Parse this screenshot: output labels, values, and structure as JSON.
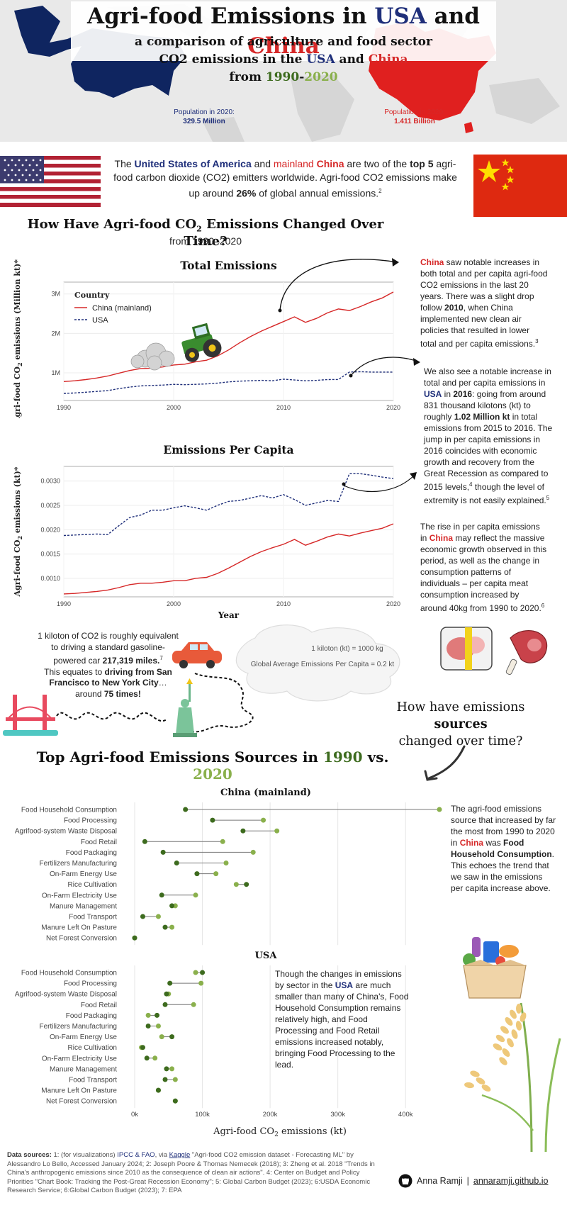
{
  "header": {
    "title_pre": "Agri-food Emissions in ",
    "title_usa": "USA",
    "title_and": " and ",
    "title_china": "China",
    "sub1": "a comparison of agriculture and food sector",
    "sub2_pre": "CO2 emissions in the ",
    "sub2_usa": "USA",
    "sub2_and": " and ",
    "sub2_china": "China",
    "sub3_pre": "from ",
    "sub3_y1": "1990",
    "sub3_dash": "-",
    "sub3_y2": "2020",
    "pop_usa_label": "Population in 2020:",
    "pop_usa_value": "329.5 Million",
    "pop_china_label": "Population in 2020:",
    "pop_china_value": "1.411 Billion"
  },
  "intro": {
    "t1": "The ",
    "usa": "United States of America",
    "t2": " and ",
    "mainland": "mainland ",
    "china": "China",
    "t3": " are two of the ",
    "top5": "top 5",
    "t4": " agri-food carbon dioxide (CO2) emitters worldwide. Agri-food CO2 emissions make up around ",
    "pct": "26%",
    "t5": " of global annual emissions.",
    "sup": "2"
  },
  "section1": {
    "title_pre": "How Have Agri-food CO",
    "title_sub": "2",
    "title_post": " Emissions Changed Over Time?",
    "subtitle": "from 1990–2020"
  },
  "colors": {
    "usa_blue": "#1f2f7a",
    "china_red": "#d62828",
    "dark_green": "#3d6b1e",
    "light_green": "#8ab04c"
  },
  "chart_data": [
    {
      "type": "line",
      "title": "Total Emissions",
      "ylabel_pre": "Agri-food CO",
      "ylabel_sub": "2",
      "ylabel_post": " emissions (Million kt)*",
      "x": [
        1990,
        1991,
        1992,
        1993,
        1994,
        1995,
        1996,
        1997,
        1998,
        1999,
        2000,
        2001,
        2002,
        2003,
        2004,
        2005,
        2006,
        2007,
        2008,
        2009,
        2010,
        2011,
        2012,
        2013,
        2014,
        2015,
        2016,
        2017,
        2018,
        2019,
        2020
      ],
      "xlim": [
        1990,
        2020
      ],
      "ylim": [
        300000,
        3300000
      ],
      "xticks": [
        1990,
        2000,
        2010,
        2020
      ],
      "yticks": [
        1000000,
        2000000,
        3000000
      ],
      "ytick_labels": [
        "1M",
        "2M",
        "3M"
      ],
      "legend_title": "Country",
      "legend_position": "top-left",
      "series": [
        {
          "name": "China (mainland)",
          "color": "#d62828",
          "style": "solid",
          "values": [
            780000,
            800000,
            830000,
            870000,
            920000,
            990000,
            1060000,
            1110000,
            1120000,
            1150000,
            1200000,
            1220000,
            1280000,
            1320000,
            1430000,
            1580000,
            1760000,
            1920000,
            2060000,
            2180000,
            2300000,
            2420000,
            2280000,
            2380000,
            2520000,
            2620000,
            2580000,
            2680000,
            2800000,
            2900000,
            3050000
          ]
        },
        {
          "name": "USA",
          "color": "#1f2f7a",
          "style": "dashed",
          "values": [
            480000,
            490000,
            510000,
            530000,
            550000,
            600000,
            640000,
            670000,
            680000,
            690000,
            710000,
            700000,
            710000,
            720000,
            740000,
            770000,
            790000,
            800000,
            810000,
            800000,
            840000,
            820000,
            800000,
            810000,
            830000,
            831000,
            1020000,
            1030000,
            1020000,
            1020000,
            1020000
          ]
        }
      ]
    },
    {
      "type": "line",
      "title": "Emissions Per Capita",
      "ylabel_pre": "Agri-food CO",
      "ylabel_sub": "2",
      "ylabel_post": " emissions (kt)*",
      "xlabel": "Year",
      "x": [
        1990,
        1991,
        1992,
        1993,
        1994,
        1995,
        1996,
        1997,
        1998,
        1999,
        2000,
        2001,
        2002,
        2003,
        2004,
        2005,
        2006,
        2007,
        2008,
        2009,
        2010,
        2011,
        2012,
        2013,
        2014,
        2015,
        2016,
        2017,
        2018,
        2019,
        2020
      ],
      "xlim": [
        1990,
        2020
      ],
      "ylim": [
        0.00062,
        0.0033
      ],
      "xticks": [
        1990,
        2000,
        2010,
        2020
      ],
      "yticks": [
        0.001,
        0.0015,
        0.002,
        0.0025,
        0.003
      ],
      "ytick_labels": [
        "0.0010",
        "0.0015",
        "0.0020",
        "0.0025",
        "0.0030"
      ],
      "series": [
        {
          "name": "China (mainland)",
          "color": "#d62828",
          "style": "solid",
          "values": [
            0.00068,
            0.00069,
            0.00071,
            0.00073,
            0.00076,
            0.00081,
            0.00087,
            0.0009,
            0.0009,
            0.00092,
            0.00095,
            0.00095,
            0.001,
            0.00102,
            0.0011,
            0.00121,
            0.00133,
            0.00145,
            0.00155,
            0.00163,
            0.0017,
            0.0018,
            0.00168,
            0.00176,
            0.00185,
            0.00191,
            0.00187,
            0.00193,
            0.00198,
            0.00203,
            0.00212
          ]
        },
        {
          "name": "USA",
          "color": "#1f2f7a",
          "style": "dashed",
          "values": [
            0.00188,
            0.00189,
            0.0019,
            0.00191,
            0.0019,
            0.00208,
            0.00225,
            0.0023,
            0.0024,
            0.0024,
            0.00245,
            0.00249,
            0.00245,
            0.0024,
            0.0025,
            0.00258,
            0.0026,
            0.00265,
            0.0027,
            0.00265,
            0.00272,
            0.00262,
            0.0025,
            0.00255,
            0.0026,
            0.00258,
            0.00315,
            0.00315,
            0.00312,
            0.00308,
            0.00305
          ]
        }
      ]
    },
    {
      "type": "dumbbell",
      "title": "China (mainland)",
      "xlim": [
        0,
        450000
      ],
      "categories": [
        "Food Household Consumption",
        "Food Processing",
        "Agrifood-system Waste Disposal",
        "Food Retail",
        "Food Packaging",
        "Fertilizers Manufacturing",
        "On-Farm Energy Use",
        "Rice Cultivation",
        "On-Farm Electricity Use",
        "Manure Management",
        "Food Transport",
        "Manure Left On Pasture",
        "Net Forest Conversion"
      ],
      "series": [
        {
          "name": "1990",
          "color": "#3d6b1e",
          "values": [
            75000,
            115000,
            160000,
            15000,
            42000,
            62000,
            92000,
            165000,
            40000,
            55000,
            12000,
            45000,
            0
          ]
        },
        {
          "name": "2020",
          "color": "#8ab04c",
          "values": [
            450000,
            190000,
            210000,
            130000,
            175000,
            135000,
            120000,
            150000,
            90000,
            60000,
            35000,
            55000,
            0
          ]
        }
      ]
    },
    {
      "type": "dumbbell",
      "title": "USA",
      "xlabel_pre": "Agri-food CO",
      "xlabel_sub": "2",
      "xlabel_post": " emissions (kt)",
      "xlim": [
        0,
        450000
      ],
      "xticks": [
        0,
        100000,
        200000,
        300000,
        400000
      ],
      "xtick_labels": [
        "0k",
        "100k",
        "200k",
        "300k",
        "400k"
      ],
      "categories": [
        "Food Household Consumption",
        "Food Processing",
        "Agrifood-system Waste Disposal",
        "Food Retail",
        "Food Packaging",
        "Fertilizers Manufacturing",
        "On-Farm Energy Use",
        "Rice Cultivation",
        "On-Farm Electricity Use",
        "Manure Management",
        "Food Transport",
        "Manure Left On Pasture",
        "Net Forest Conversion"
      ],
      "series": [
        {
          "name": "1990",
          "color": "#3d6b1e",
          "values": [
            100000,
            52000,
            47000,
            45000,
            33000,
            20000,
            55000,
            12000,
            18000,
            47000,
            45000,
            35000,
            60000
          ]
        },
        {
          "name": "2020",
          "color": "#8ab04c",
          "values": [
            90000,
            98000,
            50000,
            87000,
            20000,
            35000,
            40000,
            10000,
            30000,
            55000,
            60000,
            35000,
            60000
          ]
        }
      ]
    }
  ],
  "notes": {
    "china_p1": "China",
    "china_p2": " saw notable increases in both total and per capita agri-food CO2 emissions in the last 20 years. There was a slight drop follow ",
    "china_2010": "2010",
    "china_p3": ", when China implemented new clean air policies that resulted in lower total and per capita emissions.",
    "china_sup": "3",
    "usa_p1": "We also see a notable increase in total and per capita emissions in ",
    "usa_usa": "USA",
    "usa_p2": " in ",
    "usa_2016": "2016",
    "usa_p3": ": going from around 831 thousand kilotons (kt) to roughly ",
    "usa_1m": "1.02 Million kt",
    "usa_p4": " in total emissions from 2015 to 2016. The jump in per capita emissions in 2016 coincides with economic growth and recovery from the Great Recession as compared to 2015 levels,",
    "usa_sup4": "4",
    "usa_p5": " though the level of extremity is not easily explained.",
    "usa_sup5": "5",
    "rise_p1": "The rise in per capita emissions in ",
    "rise_china": "China",
    "rise_p2": " may reflect the massive economic growth observed in this period, as well as the change in consumption patterns of individuals – per capita meat consumption increased by around 40kg from 1990 to 2020.",
    "rise_sup": "6"
  },
  "kiloton": {
    "p1": "1 kiloton of CO2 is roughly equivalent to driving a standard gasoline-powered car ",
    "miles": "217,319 miles.",
    "sup7": "7",
    "p2": "This equates to ",
    "drive": "driving from San Francisco to New York City",
    "p3": "… around ",
    "times": "75 times!"
  },
  "cloud": {
    "line1": "1 kiloton (kt) = 1000 kg",
    "line2": "Global Average Emissions Per Capita = 0.2 kt"
  },
  "sources_q": {
    "p1": "How have emissions ",
    "bold": "sources",
    "p2": "changed over time?"
  },
  "section2": {
    "pre": "Top Agri-food Emissions Sources in ",
    "y1": "1990",
    "vs": " vs. ",
    "y2": "2020"
  },
  "dumb_notes": {
    "china_p1": "The agri-food emissions source that increased by far the most from 1990 to 2020 in ",
    "china_china": "China",
    "china_p2": " was ",
    "china_fhc": "Food Household Consumption",
    "china_p3": ". This echoes the trend that we saw in the emissions per capita increase above.",
    "usa_p1": "Though the changes in emissions by sector in the ",
    "usa_usa": "USA",
    "usa_p2": " are much smaller than many of China's, Food Household Consumption remains relatively high, and Food Processing and Food Retail emissions increased notably, bringing Food Processing to the lead."
  },
  "footer": {
    "label": "Data sources:",
    "s1": " 1: (for visualizations) ",
    "ipcc": "IPCC & FAO",
    "via": ", via ",
    "kaggle": "Kaggle",
    "s1b": " \"Agri-food CO2 emission dataset - Forecasting ML\" by Alessandro Lo Bello, Accessed January 2024; 2: Joseph Poore & Thomas Nemecek (2018); 3: Zheng et al. 2018 \"Trends in China's anthropogenic emissions since 2010 as the consequence of clean air actions\". 4: Center on Budget and Policy Priorities \"Chart Book: Tracking the Post-Great Recession Economy\"; 5: Global Carbon Budget (2023); 6:USDA Economic Research Service; 6:Global Carbon Budget (2023); 7: EPA",
    "author": "Anna Ramji",
    "sep": " | ",
    "site": "annaramji.github.io"
  }
}
